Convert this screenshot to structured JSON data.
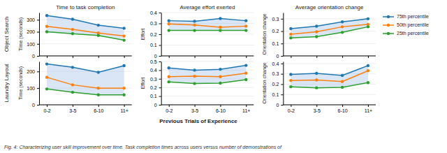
{
  "chart_data": [
    {
      "type": "line",
      "title": "Time to task completion",
      "y_label": "Time (seconds)",
      "categories": [
        "0-2",
        "3-5",
        "6-10",
        "11+"
      ],
      "series": [
        {
          "name": "75th percentile",
          "values": [
            335,
            305,
            255,
            230
          ]
        },
        {
          "name": "50th percentile",
          "values": [
            245,
            220,
            190,
            165
          ]
        },
        {
          "name": "25th percentile",
          "values": [
            200,
            185,
            170,
            130
          ]
        }
      ],
      "ylim": [
        0,
        360
      ],
      "yticks": [
        0,
        100,
        200,
        300
      ],
      "grid": true,
      "marker": "circle",
      "tick_labels": "y"
    },
    {
      "type": "line",
      "title": "Average effort exerted",
      "y_label": "Effort",
      "categories": [
        "0-2",
        "3-5",
        "6-10",
        "11+"
      ],
      "series": [
        {
          "name": "75th percentile",
          "values": [
            0.325,
            0.32,
            0.345,
            0.325
          ]
        },
        {
          "name": "50th percentile",
          "values": [
            0.295,
            0.285,
            0.265,
            0.275
          ]
        },
        {
          "name": "25th percentile",
          "values": [
            0.235,
            0.235,
            0.235,
            0.235
          ]
        }
      ],
      "ylim": [
        0,
        0.4
      ],
      "yticks": [
        0,
        0.1,
        0.2,
        0.3,
        0.4
      ],
      "grid": true,
      "marker": "circle",
      "tick_labels": "y"
    },
    {
      "type": "line",
      "title": "Average orientation change",
      "y_label": "Orientation change",
      "categories": [
        "0-2",
        "3-5",
        "6-10",
        "11+"
      ],
      "series": [
        {
          "name": "75th percentile",
          "values": [
            0.22,
            0.24,
            0.275,
            0.3
          ]
        },
        {
          "name": "50th percentile",
          "values": [
            0.175,
            0.195,
            0.235,
            0.255
          ]
        },
        {
          "name": "25th percentile",
          "values": [
            0.145,
            0.155,
            0.19,
            0.235
          ]
        }
      ],
      "ylim": [
        0,
        0.35
      ],
      "yticks": [
        0,
        0.1,
        0.2,
        0.3
      ],
      "grid": true,
      "marker": "circle",
      "tick_labels": "y",
      "legend": "right"
    },
    {
      "type": "line",
      "y_label": "Time (seconds)",
      "categories": [
        "0-2",
        "3-5",
        "6-10",
        "11+"
      ],
      "series": [
        {
          "name": "75th percentile",
          "values": [
            245,
            225,
            195,
            235
          ]
        },
        {
          "name": "50th percentile",
          "values": [
            165,
            120,
            100,
            100
          ]
        },
        {
          "name": "25th percentile",
          "values": [
            95,
            75,
            60,
            60
          ]
        }
      ],
      "ylim": [
        0,
        260
      ],
      "yticks": [
        0,
        100,
        200
      ],
      "grid": true,
      "marker": "circle"
    },
    {
      "type": "line",
      "y_label": "Effort",
      "categories": [
        "0-2",
        "3-5",
        "6-10",
        "11+"
      ],
      "series": [
        {
          "name": "75th percentile",
          "values": [
            0.425,
            0.4,
            0.41,
            0.455
          ]
        },
        {
          "name": "50th percentile",
          "values": [
            0.325,
            0.33,
            0.325,
            0.365
          ]
        },
        {
          "name": "25th percentile",
          "values": [
            0.265,
            0.245,
            0.25,
            0.29
          ]
        }
      ],
      "ylim": [
        0,
        0.5
      ],
      "yticks": [
        0,
        0.1,
        0.2,
        0.3,
        0.4,
        0.5
      ],
      "grid": true,
      "marker": "circle"
    },
    {
      "type": "line",
      "y_label": "Orientation change",
      "categories": [
        "0-2",
        "3-5",
        "6-10",
        "11+"
      ],
      "series": [
        {
          "name": "75th percentile",
          "values": [
            0.295,
            0.305,
            0.285,
            0.38
          ]
        },
        {
          "name": "50th percentile",
          "values": [
            0.235,
            0.24,
            0.225,
            0.33
          ]
        },
        {
          "name": "25th percentile",
          "values": [
            0.175,
            0.165,
            0.17,
            0.215
          ]
        }
      ],
      "ylim": [
        0,
        0.42
      ],
      "yticks": [
        0,
        0.1,
        0.2,
        0.3,
        0.4
      ],
      "grid": true,
      "marker": "circle"
    }
  ],
  "x_label": "Previous Trials of Experience",
  "row_labels": [
    "Object Search",
    "Laundry Layout"
  ],
  "caption": "Fig. 4: Characterizing user skill improvement over time. Task completion times across users versus number of demonstrations of"
}
